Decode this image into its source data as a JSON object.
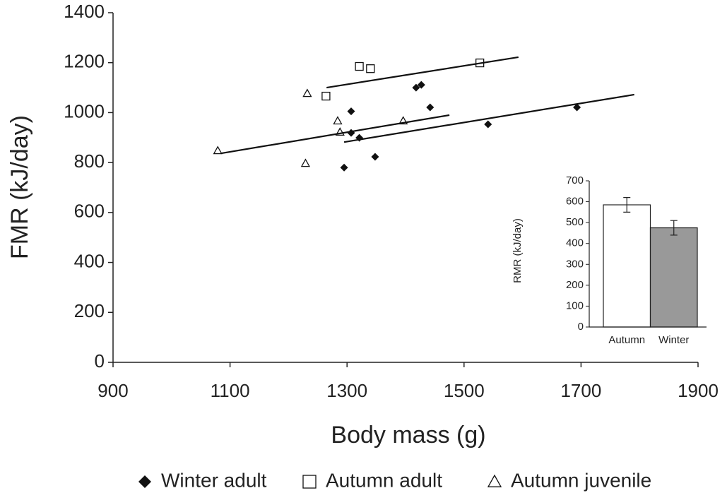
{
  "chart_data": [
    {
      "type": "scatter",
      "x_label": "Body mass (g)",
      "y_label": "FMR (kJ/day)",
      "xlim": [
        900,
        1900
      ],
      "xticks": [
        900,
        1100,
        1300,
        1500,
        1700,
        1900
      ],
      "ylim": [
        0,
        1400
      ],
      "yticks": [
        0,
        200,
        400,
        600,
        800,
        1000,
        1200,
        1400
      ],
      "legend": "bottom",
      "series": [
        {
          "name": "Winter adult",
          "marker": "diamond",
          "color": "#111111",
          "x": [
            1307,
            1418,
            1427,
            1442,
            1307,
            1321,
            1295,
            1348,
            1541,
            1693
          ],
          "values": [
            1005,
            1100,
            1111,
            1021,
            919,
            899,
            780,
            823,
            953,
            1021
          ],
          "fit": {
            "x": [
              1295,
              1791
            ],
            "values": [
              882,
              1072
            ]
          }
        },
        {
          "name": "Autumn adult",
          "marker": "square",
          "color": "#111111",
          "x": [
            1264,
            1321,
            1340,
            1527
          ],
          "values": [
            1066,
            1185,
            1176,
            1199
          ],
          "fit": {
            "x": [
              1265,
              1593
            ],
            "values": [
              1100,
              1222
            ]
          }
        },
        {
          "name": "Autumn juvenile",
          "marker": "triangle",
          "color": "#111111",
          "x": [
            1079,
            1232,
            1284,
            1288,
            1229,
            1396
          ],
          "values": [
            848,
            1077,
            967,
            922,
            797,
            967
          ],
          "fit": {
            "x": [
              1085,
              1475
            ],
            "values": [
              837,
              990
            ]
          }
        }
      ]
    },
    {
      "type": "bar",
      "y_label": "RMR (kJ/day)",
      "categories": [
        "Autumn",
        "Winter"
      ],
      "values": [
        585,
        475
      ],
      "errors": [
        35,
        35
      ],
      "colors": [
        "#ffffff",
        "#999999"
      ],
      "ylim": [
        0,
        700
      ],
      "yticks": [
        0,
        100,
        200,
        300,
        400,
        500,
        600,
        700
      ]
    }
  ]
}
